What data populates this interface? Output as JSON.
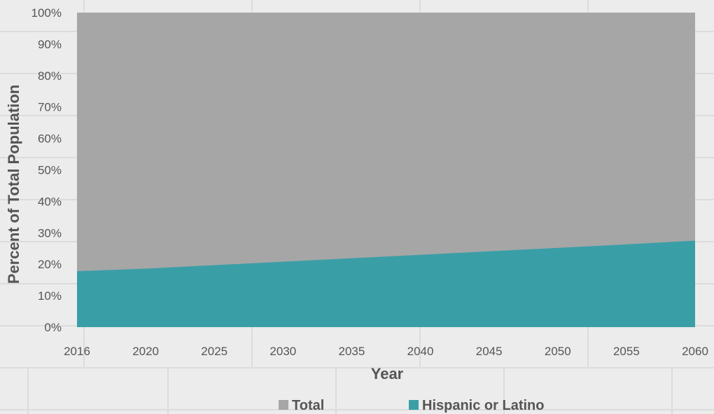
{
  "chart_data": {
    "type": "area",
    "stacked": true,
    "xlabel": "Year",
    "ylabel": "Percent of Total Population",
    "categories": [
      "2016",
      "2020",
      "2025",
      "2030",
      "2035",
      "2040",
      "2045",
      "2050",
      "2055",
      "2060"
    ],
    "ylim": [
      0,
      100
    ],
    "yticks": [
      "0%",
      "10%",
      "20%",
      "30%",
      "40%",
      "50%",
      "60%",
      "70%",
      "80%",
      "90%",
      "100%"
    ],
    "grid": false,
    "legend_position": "bottom",
    "series": [
      {
        "name": "Total",
        "values": [
          100,
          100,
          100,
          100,
          100,
          100,
          100,
          100,
          100,
          100
        ],
        "color": "#a6a6a6"
      },
      {
        "name": "Hispanic or Latino",
        "values": [
          17.8,
          18.6,
          19.7,
          20.8,
          21.9,
          23.0,
          24.1,
          25.2,
          26.3,
          27.5
        ],
        "color": "#3a9ea7"
      }
    ]
  }
}
